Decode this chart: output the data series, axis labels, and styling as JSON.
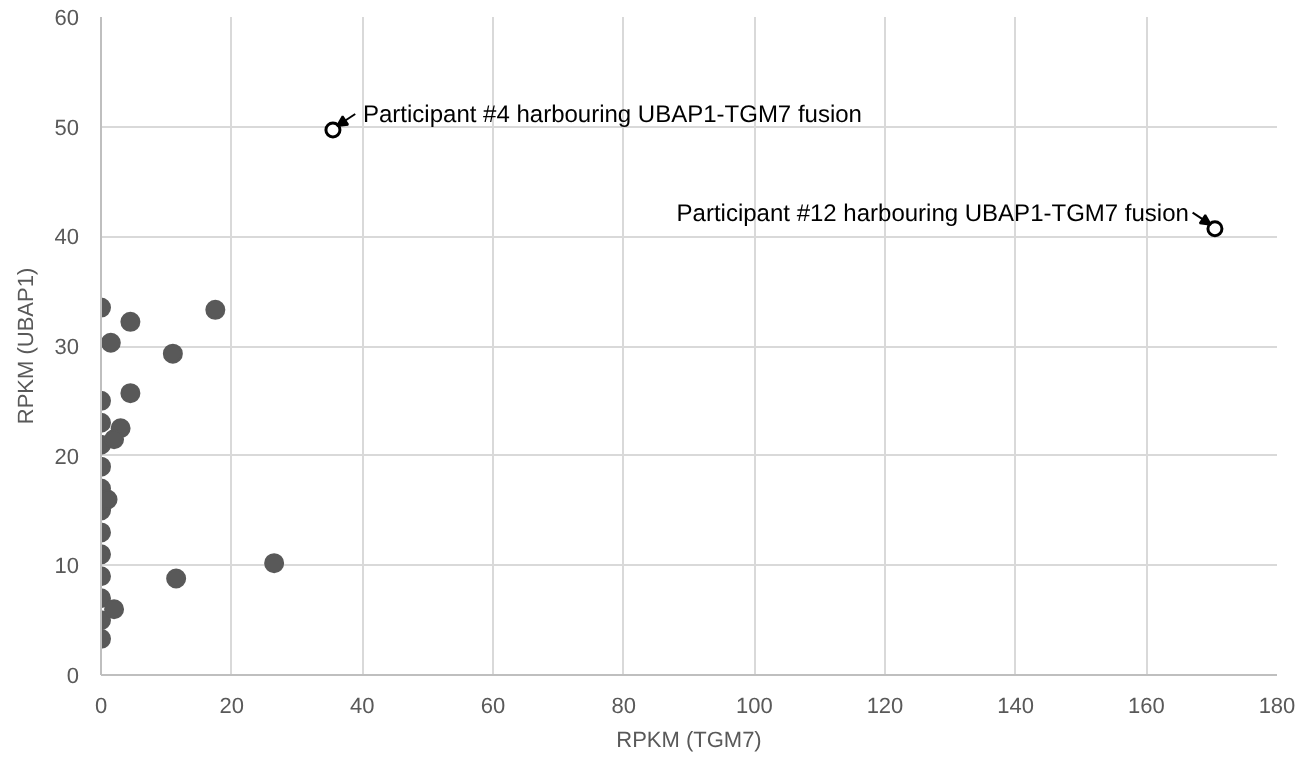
{
  "chart_data": {
    "type": "scatter",
    "xlabel": "RPKM (TGM7)",
    "ylabel": "RPKM (UBAP1)",
    "xlim": [
      0,
      180
    ],
    "xticks": [
      0,
      20,
      40,
      60,
      80,
      100,
      120,
      140,
      160,
      180
    ],
    "ylim": [
      0,
      60
    ],
    "yticks": [
      0,
      10,
      20,
      30,
      40,
      50,
      60
    ],
    "grid": true,
    "marker": "circle",
    "series": [
      {
        "color": "#595959",
        "x": [
          0,
          0,
          0,
          0,
          0,
          0,
          0,
          0,
          0,
          0,
          0,
          0,
          0,
          4.5,
          1.5,
          11,
          17.5,
          4.5,
          3,
          2,
          1,
          2,
          11.5,
          26.5
        ],
        "values": [
          3.3,
          5,
          7,
          9,
          11,
          13,
          15,
          17,
          19,
          21,
          23,
          25,
          33.5,
          32.2,
          30.3,
          29.3,
          33.3,
          25.7,
          22.5,
          21.5,
          16,
          6,
          8.8,
          10.2
        ]
      },
      {
        "color": "#000000",
        "x": [
          35.5,
          170.5
        ],
        "values": [
          49.7,
          40.7
        ]
      }
    ],
    "annotations": [
      {
        "text": "Participant #4 harbouring UBAP1-TGM7 fusion",
        "x": 35.5,
        "y": 49.7
      },
      {
        "text": "Participant #12 harbouring UBAP1-TGM7 fusion",
        "x": 170.5,
        "y": 40.7
      }
    ]
  }
}
